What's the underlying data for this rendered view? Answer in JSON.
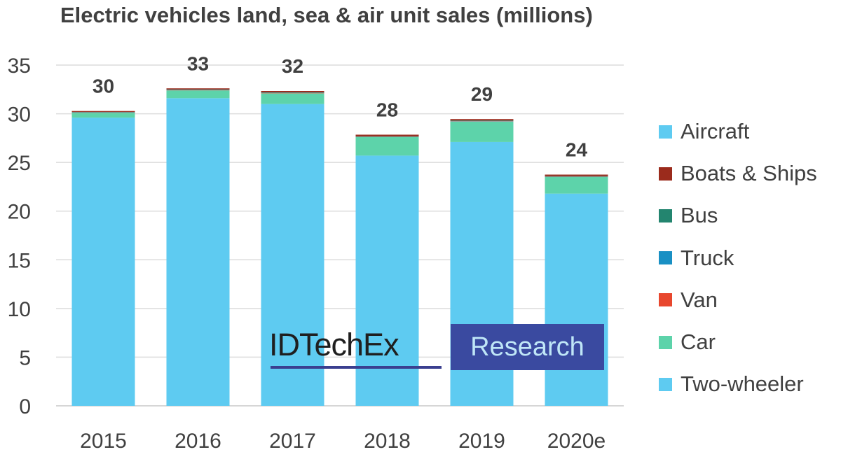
{
  "chart_data": {
    "type": "bar",
    "stacked": true,
    "title": "Electric vehicles land, sea & air unit sales (millions)",
    "categories": [
      "2015",
      "2016",
      "2017",
      "2018",
      "2019",
      "2020e"
    ],
    "totals_labels": [
      "30",
      "33",
      "32",
      "28",
      "29",
      "24"
    ],
    "ylim": [
      0,
      35
    ],
    "yticks": [
      "0",
      "5",
      "10",
      "15",
      "20",
      "25",
      "30",
      "35"
    ],
    "grid": true,
    "legend_position": "right",
    "series": [
      {
        "name": "Two-wheeler",
        "color": "#5ecbf1",
        "values": [
          29.6,
          31.6,
          31.0,
          25.7,
          27.1,
          21.8
        ]
      },
      {
        "name": "Car",
        "color": "#5dd3aa",
        "values": [
          0.5,
          0.8,
          1.1,
          1.9,
          2.1,
          1.7
        ]
      },
      {
        "name": "Van",
        "color": "#e8472e",
        "values": [
          0.03,
          0.03,
          0.03,
          0.03,
          0.03,
          0.03
        ]
      },
      {
        "name": "Truck",
        "color": "#1990c4",
        "values": [
          0.02,
          0.02,
          0.02,
          0.02,
          0.02,
          0.02
        ]
      },
      {
        "name": "Bus",
        "color": "#23856f",
        "values": [
          0.03,
          0.04,
          0.04,
          0.05,
          0.05,
          0.05
        ]
      },
      {
        "name": "Boats & Ships",
        "color": "#9b2b1c",
        "values": [
          0.1,
          0.12,
          0.15,
          0.15,
          0.15,
          0.15
        ]
      },
      {
        "name": "Aircraft",
        "color": "#5ecbf1",
        "values": [
          0.0,
          0.0,
          0.0,
          0.0,
          0.0,
          0.0
        ]
      }
    ],
    "legend_order": [
      "Aircraft",
      "Boats & Ships",
      "Bus",
      "Truck",
      "Van",
      "Car",
      "Two-wheeler"
    ]
  },
  "watermark": {
    "left_text": "IDTechEx",
    "right_text": "Research",
    "colors": {
      "left_text": "#1f1f1f",
      "right_bg": "#3a4aa0",
      "right_text": "#bfe6f7",
      "underline": "#3a3f8f"
    }
  }
}
